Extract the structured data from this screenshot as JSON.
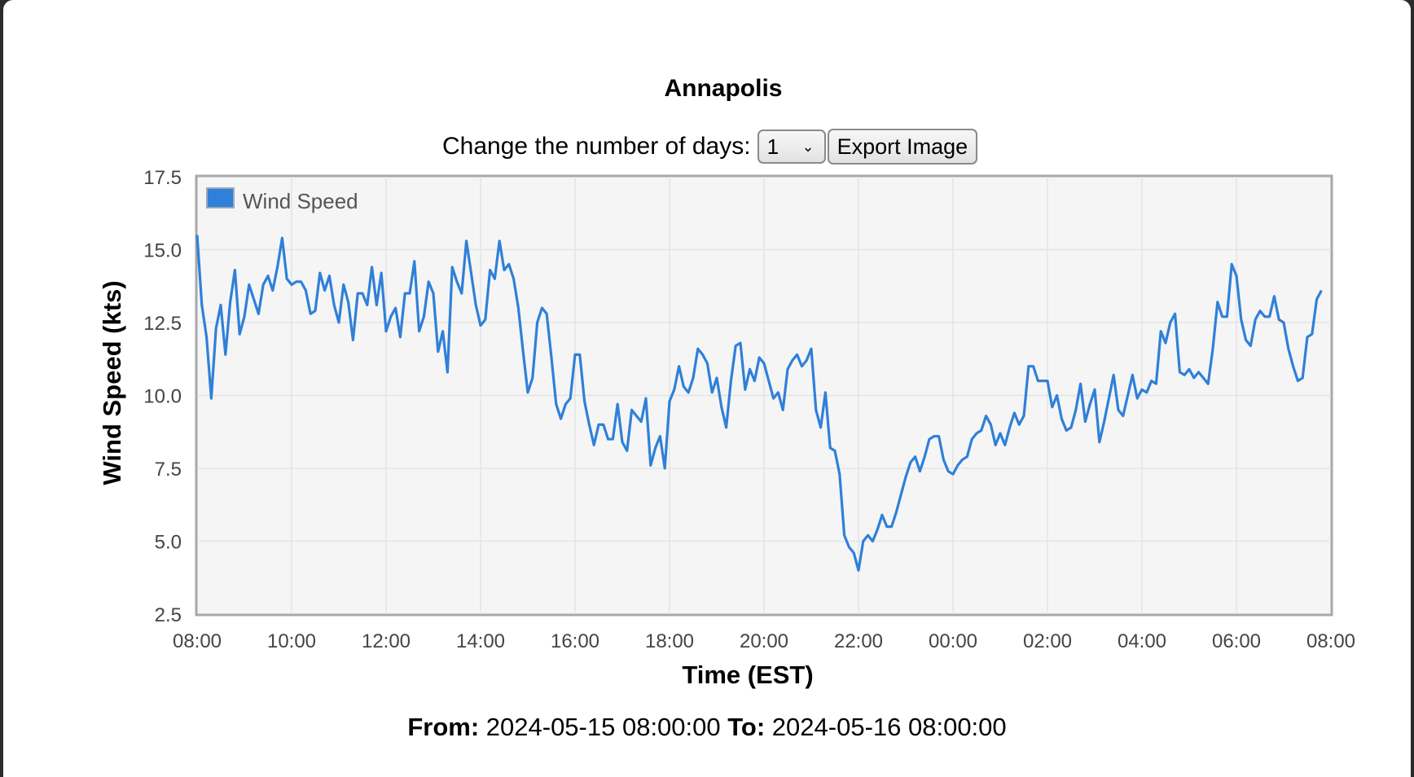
{
  "title": "Annapolis",
  "controls": {
    "label": "Change the number of days:",
    "days_value": "1",
    "export_label": "Export Image"
  },
  "range": {
    "from_label": "From:",
    "from_value": "2024-05-15 08:00:00",
    "to_label": "To:",
    "to_value": "2024-05-16 08:00:00"
  },
  "chart_data": {
    "type": "line",
    "title": "Annapolis",
    "xlabel": "Time (EST)",
    "ylabel": "Wind Speed (kts)",
    "ylim": [
      2.5,
      17.5
    ],
    "yticks": [
      "2.5",
      "5.0",
      "7.5",
      "10.0",
      "12.5",
      "15.0",
      "17.5"
    ],
    "xticks": [
      "08:00",
      "10:00",
      "12:00",
      "14:00",
      "16:00",
      "18:00",
      "20:00",
      "22:00",
      "00:00",
      "02:00",
      "04:00",
      "06:00",
      "08:00"
    ],
    "x_start": "2024-05-15 08:00",
    "x_step_minutes": 6,
    "grid": true,
    "legend_position": "top-left",
    "series_color": "#2f80d8",
    "series": [
      {
        "name": "Wind Speed",
        "values": [
          15.5,
          13.1,
          12.0,
          9.9,
          12.3,
          13.1,
          11.4,
          13.2,
          14.3,
          12.1,
          12.7,
          13.8,
          13.3,
          12.8,
          13.8,
          14.1,
          13.6,
          14.4,
          15.4,
          14.0,
          13.8,
          13.9,
          13.9,
          13.6,
          12.8,
          12.9,
          14.2,
          13.6,
          14.1,
          13.1,
          12.5,
          13.8,
          13.2,
          11.9,
          13.5,
          13.5,
          13.1,
          14.4,
          13.1,
          14.2,
          12.2,
          12.7,
          13.0,
          12.0,
          13.5,
          13.5,
          14.6,
          12.2,
          12.7,
          13.9,
          13.5,
          11.5,
          12.2,
          10.8,
          14.4,
          13.9,
          13.5,
          15.3,
          14.2,
          13.1,
          12.4,
          12.6,
          14.3,
          14.0,
          15.3,
          14.3,
          14.5,
          14.0,
          13.0,
          11.5,
          10.1,
          10.6,
          12.5,
          13.0,
          12.8,
          11.3,
          9.7,
          9.2,
          9.7,
          9.9,
          11.4,
          11.4,
          9.8,
          9.0,
          8.3,
          9.0,
          9.0,
          8.5,
          8.5,
          9.7,
          8.4,
          8.1,
          9.5,
          9.3,
          9.1,
          9.9,
          7.6,
          8.2,
          8.6,
          7.5,
          9.8,
          10.2,
          11.0,
          10.3,
          10.1,
          10.6,
          11.6,
          11.4,
          11.1,
          10.1,
          10.6,
          9.6,
          8.9,
          10.5,
          11.7,
          11.8,
          10.2,
          10.9,
          10.5,
          11.3,
          11.1,
          10.5,
          9.9,
          10.1,
          9.5,
          10.9,
          11.2,
          11.4,
          11.0,
          11.2,
          11.6,
          9.5,
          8.9,
          10.1,
          8.2,
          8.1,
          7.3,
          5.2,
          4.8,
          4.6,
          4.0,
          5.0,
          5.2,
          5.0,
          5.4,
          5.9,
          5.5,
          5.5,
          6.0,
          6.6,
          7.2,
          7.7,
          7.9,
          7.4,
          7.9,
          8.5,
          8.6,
          8.6,
          7.8,
          7.4,
          7.3,
          7.6,
          7.8,
          7.9,
          8.5,
          8.7,
          8.8,
          9.3,
          9.0,
          8.3,
          8.7,
          8.3,
          8.9,
          9.4,
          9.0,
          9.3,
          11.0,
          11.0,
          10.5,
          10.5,
          10.5,
          9.6,
          10.0,
          9.2,
          8.8,
          8.9,
          9.5,
          10.4,
          9.1,
          9.7,
          10.2,
          8.4,
          9.1,
          9.9,
          10.7,
          9.5,
          9.3,
          10.0,
          10.7,
          9.9,
          10.2,
          10.1,
          10.5,
          10.4,
          12.2,
          11.8,
          12.5,
          12.8,
          10.8,
          10.7,
          10.9,
          10.6,
          10.8,
          10.6,
          10.4,
          11.6,
          13.2,
          12.7,
          12.7,
          14.5,
          14.1,
          12.6,
          11.9,
          11.7,
          12.6,
          12.9,
          12.7,
          12.7,
          13.4,
          12.6,
          12.5,
          11.6,
          11.0,
          10.5,
          10.6,
          12.0,
          12.1,
          13.3,
          13.6
        ]
      }
    ]
  }
}
